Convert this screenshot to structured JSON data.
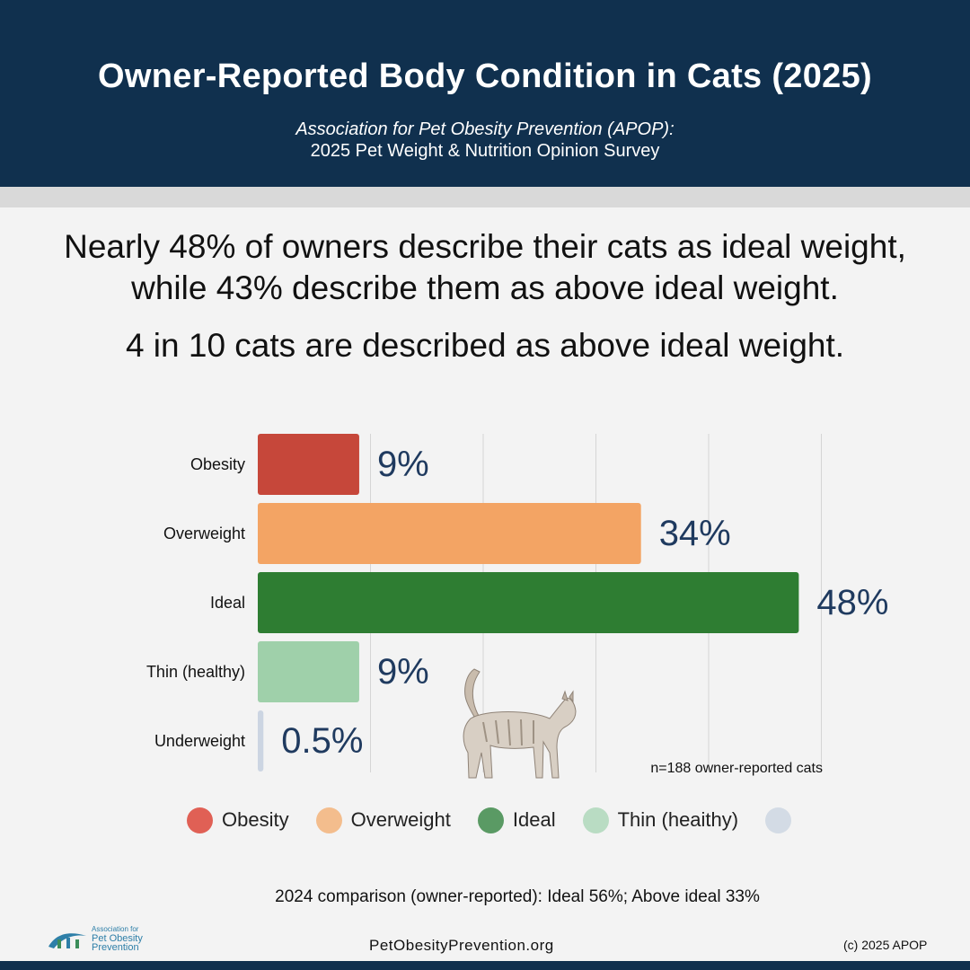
{
  "header": {
    "title": "Owner-Reported Body Condition in Cats (2025)",
    "subtitle_line1": "Association for Pet Obesity Prevention (APOP):",
    "subtitle_line2": "2025 Pet Weight & Nutrition Opinion Survey"
  },
  "headline": {
    "line1": "Nearly 48% of owners describe their cats as ideal weight,",
    "line2": "while 43% describe them as above ideal weight.",
    "line3": "4 in 10 cats are described as above ideal weight."
  },
  "chart_data": {
    "type": "bar",
    "orientation": "horizontal",
    "categories": [
      "Obesity",
      "Overweight",
      "Ideal",
      "Thin (healthy)",
      "Underweight"
    ],
    "values": [
      9,
      34,
      48,
      9,
      0.5
    ],
    "value_labels": [
      "9%",
      "34%",
      "48%",
      "9%",
      "0.5%"
    ],
    "colors": [
      "#c6473a",
      "#f3a464",
      "#2e7d32",
      "#9fd0aa",
      "#ccd5e2"
    ],
    "xlim": [
      0,
      50
    ],
    "gridlines": [
      10,
      20,
      30,
      40,
      50
    ],
    "grid": true,
    "sample_note": "n=188 owner-reported cats"
  },
  "legend": [
    {
      "label": "Obesity",
      "color": "#e06055"
    },
    {
      "label": "Overweight",
      "color": "#f3bd8d"
    },
    {
      "label": "Ideal",
      "color": "#5a9a64"
    },
    {
      "label": "Thin (heaithy)",
      "color": "#b9dcc3"
    },
    {
      "label": "",
      "color": "#d3dbe5"
    }
  ],
  "footer": {
    "comparison": "2024 comparison (owner-reported): Ideal 56%; Above ideal 33%",
    "url": "PetObesityPrevention.org",
    "copyright": "(c) 2025 APOP",
    "logo_line1": "Association for",
    "logo_line2": "Pet Obesity",
    "logo_line3": "Prevention"
  },
  "colors": {
    "header_bg": "#10304e",
    "value_label": "#1f3a5f"
  },
  "icons": [
    "cat-illustration",
    "apop-logo-icon"
  ]
}
